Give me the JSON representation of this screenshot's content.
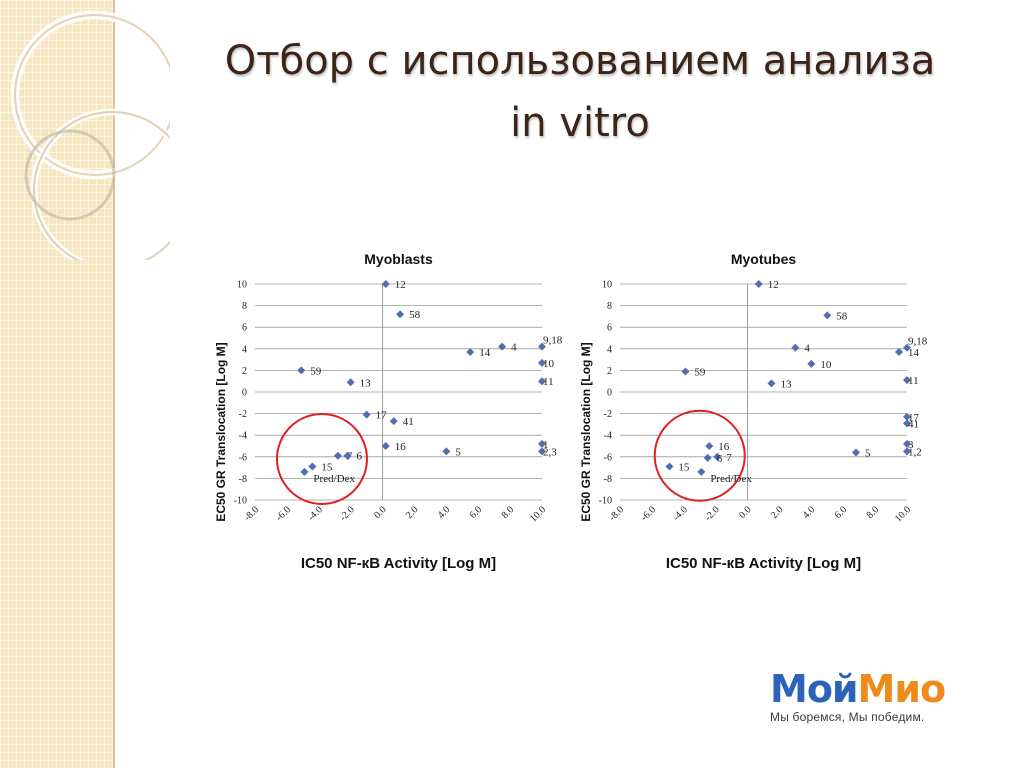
{
  "slide": {
    "title_line1": "Отбор с использованием анализа",
    "title_line2": "in vitro"
  },
  "logo": {
    "part1": "Мой",
    "part2": "Мио",
    "tagline": "Мы боремся, Мы победим.",
    "color_part1": "#2a63b8",
    "color_part2": "#f08a1a"
  },
  "chart_data": [
    {
      "type": "scatter",
      "title": "Myoblasts",
      "xlabel": "IC50 NF-кB Activity [Log M]",
      "ylabel": "EC50 GR Translocation [Log M]",
      "xlim": [
        -8,
        10
      ],
      "ylim": [
        -10,
        10
      ],
      "x_ticks": [
        "-8.0",
        "-6.0",
        "-4.0",
        "-2.0",
        "0.0",
        "2.0",
        "4.0",
        "6.0",
        "8.0",
        "10.0"
      ],
      "y_ticks": [
        "10",
        "8",
        "6",
        "4",
        "2",
        "0",
        "-2",
        "-4",
        "-6",
        "-8",
        "-10"
      ],
      "grid": "horizontal",
      "marker_color": "#4f6fb0",
      "highlight": {
        "shape": "circle",
        "color": "#e02020",
        "center_x": -3.8,
        "center_y": -6.2
      },
      "points": [
        {
          "label": "12",
          "x": 0.2,
          "y": 10
        },
        {
          "label": "58",
          "x": 1.1,
          "y": 7.2
        },
        {
          "label": "9,18",
          "x": 10.0,
          "y": 4.2
        },
        {
          "label": "4",
          "x": 7.5,
          "y": 4.2
        },
        {
          "label": "14",
          "x": 5.5,
          "y": 3.7
        },
        {
          "label": "10",
          "x": 10.0,
          "y": 2.7
        },
        {
          "label": "59",
          "x": -5.1,
          "y": 2.0
        },
        {
          "label": "13",
          "x": -2.0,
          "y": 0.9
        },
        {
          "label": "11",
          "x": 10.0,
          "y": 1.0
        },
        {
          "label": "17",
          "x": -1.0,
          "y": -2.1
        },
        {
          "label": "41",
          "x": 0.7,
          "y": -2.7
        },
        {
          "label": "1",
          "x": 10.0,
          "y": -4.8
        },
        {
          "label": "2,3",
          "x": 10.0,
          "y": -5.5
        },
        {
          "label": "16",
          "x": 0.2,
          "y": -5.0
        },
        {
          "label": "5",
          "x": 4.0,
          "y": -5.5
        },
        {
          "label": "7",
          "x": -2.8,
          "y": -5.9
        },
        {
          "label": "6",
          "x": -2.2,
          "y": -5.9
        },
        {
          "label": "15",
          "x": -4.4,
          "y": -6.9
        },
        {
          "label": "Pred/Dex",
          "x": -4.9,
          "y": -7.4
        }
      ]
    },
    {
      "type": "scatter",
      "title": "Myotubes",
      "xlabel": "IC50 NF-кB Activity [Log M]",
      "ylabel": "EC50 GR Translocation [Log M]",
      "xlim": [
        -8,
        10
      ],
      "ylim": [
        -10,
        10
      ],
      "x_ticks": [
        "-8.0",
        "-6.0",
        "-4.0",
        "-2.0",
        "0.0",
        "2.0",
        "4.0",
        "6.0",
        "8.0",
        "10.0"
      ],
      "y_ticks": [
        "10",
        "8",
        "6",
        "4",
        "2",
        "0",
        "-2",
        "-4",
        "-6",
        "-8",
        "-10"
      ],
      "grid": "horizontal",
      "marker_color": "#4f6fb0",
      "highlight": {
        "shape": "circle",
        "color": "#e02020",
        "center_x": -3.0,
        "center_y": -5.9
      },
      "points": [
        {
          "label": "12",
          "x": 0.7,
          "y": 10
        },
        {
          "label": "58",
          "x": 5.0,
          "y": 7.1
        },
        {
          "label": "9,18",
          "x": 10.0,
          "y": 4.1
        },
        {
          "label": "4",
          "x": 3.0,
          "y": 4.1
        },
        {
          "label": "14",
          "x": 9.5,
          "y": 3.7
        },
        {
          "label": "10",
          "x": 4.0,
          "y": 2.6
        },
        {
          "label": "59",
          "x": -3.9,
          "y": 1.9
        },
        {
          "label": "13",
          "x": 1.5,
          "y": 0.8
        },
        {
          "label": "11",
          "x": 10.0,
          "y": 1.1
        },
        {
          "label": "17",
          "x": 10.0,
          "y": -2.3
        },
        {
          "label": "41",
          "x": 10.0,
          "y": -2.9
        },
        {
          "label": "3",
          "x": 10.0,
          "y": -4.8
        },
        {
          "label": "1,2",
          "x": 10.0,
          "y": -5.5
        },
        {
          "label": "16",
          "x": -2.4,
          "y": -5.0
        },
        {
          "label": "5",
          "x": 6.8,
          "y": -5.6
        },
        {
          "label": "7",
          "x": -1.9,
          "y": -6.0
        },
        {
          "label": "6",
          "x": -2.5,
          "y": -6.1
        },
        {
          "label": "15",
          "x": -4.9,
          "y": -6.9
        },
        {
          "label": "Pred/Dex",
          "x": -2.9,
          "y": -7.4
        }
      ]
    }
  ]
}
